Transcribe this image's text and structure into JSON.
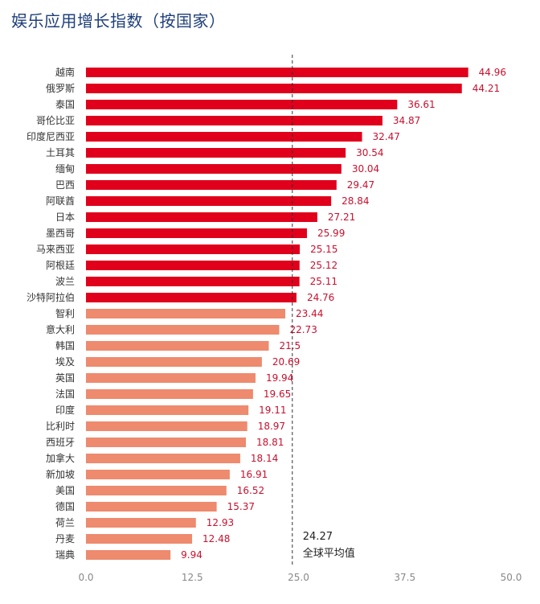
{
  "chart_data": {
    "type": "bar",
    "orientation": "horizontal",
    "title": "娱乐应用增长指数（按国家）",
    "xlabel": "",
    "ylabel": "",
    "xlim": [
      0,
      50
    ],
    "xticks": [
      "0.0",
      "12.5",
      "25.0",
      "37.5",
      "50.0"
    ],
    "xtick_values": [
      0,
      12.5,
      25,
      37.5,
      50
    ],
    "grid": false,
    "categories": [
      "越南",
      "俄罗斯",
      "泰国",
      "哥伦比亚",
      "印度尼西亚",
      "土耳其",
      "缅甸",
      "巴西",
      "阿联酋",
      "日本",
      "墨西哥",
      "马来西亚",
      "阿根廷",
      "波兰",
      "沙特阿拉伯",
      "智利",
      "意大利",
      "韩国",
      "埃及",
      "英国",
      "法国",
      "印度",
      "比利时",
      "西班牙",
      "加拿大",
      "新加坡",
      "美国",
      "德国",
      "荷兰",
      "丹麦",
      "瑞典"
    ],
    "values": [
      44.96,
      44.21,
      36.61,
      34.87,
      32.47,
      30.54,
      30.04,
      29.47,
      28.84,
      27.21,
      25.99,
      25.15,
      25.12,
      25.11,
      24.76,
      23.44,
      22.73,
      21.5,
      20.69,
      19.94,
      19.65,
      19.11,
      18.97,
      18.81,
      18.14,
      16.91,
      16.52,
      15.37,
      12.93,
      12.48,
      9.94
    ],
    "value_labels": [
      "44.96",
      "44.21",
      "36.61",
      "34.87",
      "32.47",
      "30.54",
      "30.04",
      "29.47",
      "28.84",
      "27.21",
      "25.99",
      "25.15",
      "25.12",
      "25.11",
      "24.76",
      "23.44",
      "22.73",
      "21.5",
      "20.69",
      "19.94",
      "19.65",
      "19.11",
      "18.97",
      "18.81",
      "18.14",
      "16.91",
      "16.52",
      "15.37",
      "12.93",
      "12.48",
      "9.94"
    ],
    "reference_line": {
      "value": 24.27,
      "value_label": "24.27",
      "label": "全球平均值"
    },
    "colors": {
      "above_average": "#e0001b",
      "below_average": "#ee8a6e",
      "value_text": "#c8102e",
      "reference_line": "#333333",
      "title": "#1f3f7a"
    }
  }
}
